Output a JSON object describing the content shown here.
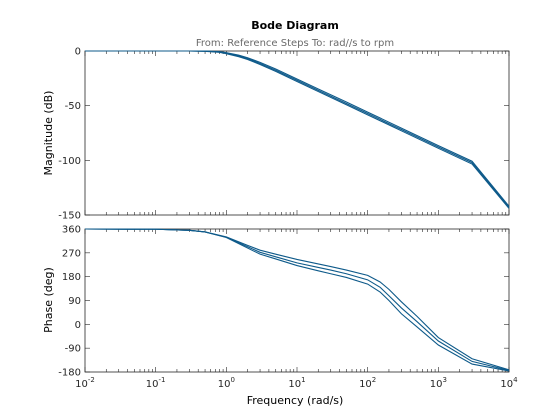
{
  "chart_data": [
    {
      "type": "line",
      "panel": "magnitude",
      "title": "Bode Diagram",
      "subtitle": "From: Reference Steps  To: rad//s to rpm",
      "ylabel": "Magnitude (dB)",
      "xlabel": "",
      "xscale": "log",
      "xlim": [
        0.01,
        10000
      ],
      "ylim": [
        -150,
        0
      ],
      "yticks": [
        0,
        -50,
        -100,
        -150
      ],
      "grid": false,
      "series": [
        {
          "x": [
            0.01,
            0.1,
            0.3,
            0.5,
            0.8,
            1,
            1.5,
            2,
            3,
            5,
            10,
            20,
            50,
            100,
            300,
            1000,
            3000,
            10000
          ],
          "y": [
            0,
            0,
            0,
            -0.1,
            -0.6,
            -1.5,
            -3.8,
            -6.2,
            -10.4,
            -16.5,
            -25.6,
            -34.8,
            -46.7,
            -55.9,
            -70.5,
            -86.5,
            -100.8,
            -142
          ]
        },
        {
          "x": [
            0.01,
            0.1,
            0.3,
            0.5,
            0.8,
            1,
            1.5,
            2,
            3,
            5,
            10,
            20,
            50,
            100,
            300,
            1000,
            3000,
            10000
          ],
          "y": [
            0,
            0,
            0,
            -0.2,
            -0.9,
            -2.0,
            -4.5,
            -7.0,
            -11.4,
            -17.6,
            -26.8,
            -36.0,
            -48.0,
            -57.2,
            -71.8,
            -87.8,
            -102.1,
            -143
          ]
        },
        {
          "x": [
            0.01,
            0.1,
            0.3,
            0.5,
            0.8,
            1,
            1.5,
            2,
            3,
            5,
            10,
            20,
            50,
            100,
            300,
            1000,
            3000,
            10000
          ],
          "y": [
            0,
            0,
            0,
            -0.3,
            -1.2,
            -2.5,
            -5.2,
            -7.8,
            -12.3,
            -18.6,
            -27.9,
            -37.1,
            -49.2,
            -58.4,
            -73.0,
            -89.0,
            -103.4,
            -144
          ]
        }
      ]
    },
    {
      "type": "line",
      "panel": "phase",
      "xlabel": "Frequency  (rad/s)",
      "ylabel": "Phase (deg)",
      "xscale": "log",
      "xlim": [
        0.01,
        10000
      ],
      "ylim": [
        -180,
        360
      ],
      "yticks": [
        360,
        270,
        180,
        90,
        0,
        -90,
        -180
      ],
      "xticks": [
        {
          "base": "10",
          "exp": "-2"
        },
        {
          "base": "10",
          "exp": "-1"
        },
        {
          "base": "10",
          "exp": "0"
        },
        {
          "base": "10",
          "exp": "1"
        },
        {
          "base": "10",
          "exp": "2"
        },
        {
          "base": "10",
          "exp": "3"
        },
        {
          "base": "10",
          "exp": "4"
        }
      ],
      "grid": false,
      "series": [
        {
          "x": [
            0.01,
            0.1,
            0.3,
            0.5,
            1,
            2,
            3,
            5,
            10,
            20,
            30,
            50,
            100,
            150,
            200,
            300,
            500,
            1000,
            3000,
            10000
          ],
          "y": [
            360,
            359,
            355,
            349,
            330,
            298,
            280,
            265,
            245,
            228,
            218,
            205,
            185,
            160,
            132,
            85,
            30,
            -50,
            -130,
            -172
          ]
        },
        {
          "x": [
            0.01,
            0.1,
            0.3,
            0.5,
            1,
            2,
            3,
            5,
            10,
            20,
            30,
            50,
            100,
            150,
            200,
            300,
            500,
            1000,
            3000,
            10000
          ],
          "y": [
            360,
            359,
            355,
            349,
            329,
            293,
            272,
            255,
            232,
            215,
            205,
            191,
            168,
            140,
            108,
            62,
            10,
            -63,
            -140,
            -174
          ]
        },
        {
          "x": [
            0.01,
            0.1,
            0.3,
            0.5,
            1,
            2,
            3,
            5,
            10,
            20,
            30,
            50,
            100,
            150,
            200,
            300,
            500,
            1000,
            3000,
            10000
          ],
          "y": [
            360,
            359,
            355,
            349,
            328,
            288,
            265,
            247,
            222,
            202,
            191,
            177,
            152,
            122,
            90,
            40,
            -10,
            -78,
            -150,
            -176
          ]
        }
      ]
    }
  ]
}
